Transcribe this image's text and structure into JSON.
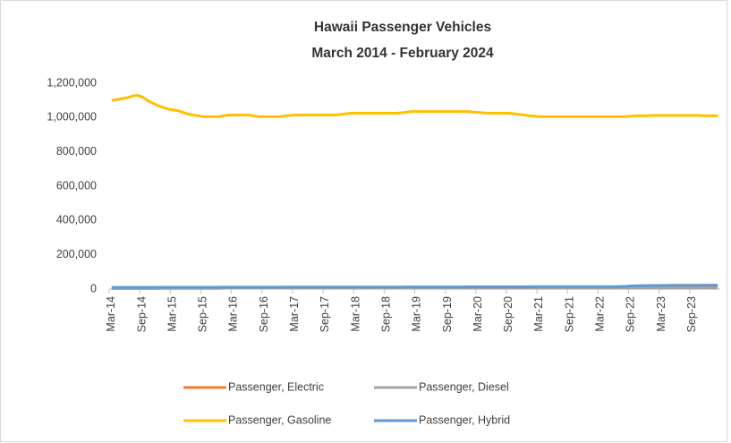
{
  "chart_data": {
    "type": "line",
    "title": "Hawaii Passenger Vehicles",
    "subtitle": "March 2014 - February 2024",
    "categories": [
      "Mar-14",
      null,
      null,
      null,
      null,
      null,
      "Sep-14",
      null,
      null,
      null,
      null,
      null,
      "Mar-15",
      null,
      null,
      null,
      null,
      null,
      "Sep-15",
      null,
      null,
      null,
      null,
      null,
      "Mar-16",
      null,
      null,
      null,
      null,
      null,
      "Sep-16",
      null,
      null,
      null,
      null,
      null,
      "Mar-17",
      null,
      null,
      null,
      null,
      null,
      "Sep-17",
      null,
      null,
      null,
      null,
      null,
      "Mar-18",
      null,
      null,
      null,
      null,
      null,
      "Sep-18",
      null,
      null,
      null,
      null,
      null,
      "Mar-19",
      null,
      null,
      null,
      null,
      null,
      "Sep-19",
      null,
      null,
      null,
      null,
      null,
      "Mar-20",
      null,
      null,
      null,
      null,
      null,
      "Sep-20",
      null,
      null,
      null,
      null,
      null,
      "Mar-21",
      null,
      null,
      null,
      null,
      null,
      "Sep-21",
      null,
      null,
      null,
      null,
      null,
      "Mar-22",
      null,
      null,
      null,
      null,
      null,
      "Sep-22",
      null,
      null,
      null,
      null,
      null,
      "Mar-23",
      null,
      null,
      null,
      null,
      null,
      "Sep-23",
      null,
      null,
      null,
      null,
      null
    ],
    "series": [
      {
        "name": "Passenger, Electric",
        "color": "#ed7d31",
        "values": [
          3000,
          3000,
          3000,
          3000,
          3000,
          3000,
          3000,
          3000,
          3000,
          3000,
          4000,
          4000,
          4000,
          4000,
          4000,
          4000,
          4000,
          4000,
          4000,
          4000,
          4000,
          4000,
          5000,
          5000,
          5000,
          5000,
          5000,
          5000,
          5000,
          5000,
          5000,
          5000,
          5000,
          5000,
          6000,
          6000,
          6000,
          6000,
          6000,
          6000,
          6000,
          6000,
          6000,
          6000,
          6000,
          6000,
          7000,
          7000,
          7000,
          7000,
          7000,
          7000,
          7000,
          7000,
          7000,
          7000,
          7000,
          7000,
          8000,
          8000,
          8000,
          8000,
          8000,
          8000,
          8000,
          8000,
          8000,
          8000,
          8000,
          8000,
          9000,
          9000,
          9000,
          9000,
          9000,
          9000,
          9000,
          9000,
          9000,
          9000,
          9000,
          9000,
          10000,
          10000,
          10000,
          10000,
          10000,
          10000,
          10000,
          10000,
          10000,
          10000,
          10000,
          10000,
          12000,
          12000,
          12000,
          12000,
          12000,
          12000,
          12000,
          12000,
          12000,
          12000,
          12000,
          12000,
          15000,
          15000,
          15000,
          15000,
          15000,
          15000,
          15000,
          15000,
          15000,
          15000,
          15000,
          15000,
          17000,
          17000
        ]
      },
      {
        "name": "Passenger, Diesel",
        "color": "#a5a5a5",
        "values": [
          5000,
          5000,
          5000,
          5000,
          5000,
          5000,
          5000,
          5000,
          5000,
          5000,
          5000,
          5000,
          5000,
          5000,
          5000,
          5000,
          5000,
          5000,
          5000,
          5000,
          5000,
          5000,
          5000,
          5000,
          5000,
          5000,
          5000,
          5000,
          5000,
          5000,
          5000,
          5000,
          5000,
          5000,
          5000,
          5000,
          5000,
          5000,
          5000,
          5000,
          5000,
          5000,
          5000,
          5000,
          5000,
          5000,
          5000,
          5000,
          5000,
          5000,
          5000,
          5000,
          5000,
          5000,
          5000,
          5000,
          5000,
          5000,
          5000,
          5000,
          5000,
          5000,
          5000,
          5000,
          5000,
          5000,
          5000,
          5000,
          5000,
          5000,
          5000,
          5000,
          5000,
          5000,
          5000,
          5000,
          5000,
          5000,
          5000,
          5000,
          5000,
          5000,
          5000,
          5000,
          5000,
          5000,
          5000,
          5000,
          5000,
          5000,
          5000,
          5000,
          5000,
          5000,
          5000,
          5000,
          5000,
          5000,
          5000,
          5000,
          5000,
          5000,
          5000,
          5000,
          5000,
          5000,
          5000,
          5000,
          5000,
          5000,
          5000,
          5000,
          5000,
          5000,
          5000,
          5000,
          5000,
          5000,
          5000,
          5000
        ]
      },
      {
        "name": "Passenger, Gasoline",
        "color": "#ffc000",
        "values": [
          1100000,
          1105000,
          1110000,
          1115000,
          1125000,
          1130000,
          1120000,
          1100000,
          1085000,
          1070000,
          1060000,
          1050000,
          1045000,
          1040000,
          1030000,
          1020000,
          1015000,
          1010000,
          1005000,
          1005000,
          1005000,
          1005000,
          1010000,
          1015000,
          1015000,
          1015000,
          1015000,
          1015000,
          1008000,
          1005000,
          1005000,
          1005000,
          1005000,
          1005000,
          1010000,
          1012000,
          1015000,
          1015000,
          1015000,
          1015000,
          1015000,
          1015000,
          1015000,
          1015000,
          1015000,
          1018000,
          1022000,
          1025000,
          1025000,
          1025000,
          1025000,
          1025000,
          1025000,
          1025000,
          1025000,
          1025000,
          1025000,
          1028000,
          1032000,
          1035000,
          1035000,
          1035000,
          1035000,
          1035000,
          1035000,
          1035000,
          1035000,
          1035000,
          1035000,
          1035000,
          1035000,
          1032000,
          1030000,
          1028000,
          1025000,
          1025000,
          1025000,
          1025000,
          1025000,
          1022000,
          1018000,
          1015000,
          1010000,
          1008000,
          1005000,
          1005000,
          1005000,
          1005000,
          1005000,
          1005000,
          1005000,
          1005000,
          1005000,
          1005000,
          1005000,
          1005000,
          1005000,
          1005000,
          1005000,
          1005000,
          1005000,
          1005000,
          1008000,
          1010000,
          1010000,
          1010000,
          1012000,
          1012000,
          1012000,
          1012000,
          1012000,
          1012000,
          1012000,
          1012000,
          1012000,
          1012000,
          1010000,
          1010000,
          1010000,
          1010000
        ]
      },
      {
        "name": "Passenger, Hybrid",
        "color": "#5b9bd5",
        "values": [
          10000,
          10000,
          10000,
          10000,
          10000,
          10000,
          10000,
          10000,
          10000,
          10000,
          10500,
          10500,
          10500,
          10500,
          10500,
          10500,
          10500,
          10500,
          10500,
          10500,
          10500,
          10500,
          11000,
          11000,
          11000,
          11000,
          11000,
          11000,
          11000,
          11000,
          11000,
          11000,
          11000,
          11000,
          11500,
          11500,
          11500,
          11500,
          11500,
          11500,
          11500,
          11500,
          11500,
          11500,
          11500,
          11500,
          12000,
          12000,
          12000,
          12000,
          12000,
          12000,
          12000,
          12000,
          12000,
          12000,
          12000,
          12000,
          12500,
          12500,
          12500,
          12500,
          12500,
          12500,
          12500,
          12500,
          12500,
          12500,
          12500,
          12500,
          13000,
          13000,
          13000,
          13000,
          13000,
          13000,
          13000,
          13000,
          13000,
          13000,
          13000,
          13000,
          13500,
          13500,
          13500,
          13500,
          13500,
          13500,
          13500,
          13500,
          13500,
          13500,
          13500,
          13500,
          14000,
          14000,
          14000,
          14000,
          14000,
          14000,
          15000,
          16000,
          18000,
          19000,
          20000,
          20500,
          21000,
          21000,
          21500,
          21500,
          22000,
          22000,
          22000,
          22500,
          22500,
          22500,
          23000,
          23000,
          23000,
          23000
        ]
      }
    ],
    "ylim": [
      0,
      1200000
    ],
    "yticks": [
      0,
      {
        "value": 200000,
        "label": "200,000"
      },
      {
        "value": 400000,
        "label": "400,000"
      },
      {
        "value": 600000,
        "label": "600,000"
      },
      {
        "value": 800000,
        "label": "800,000"
      },
      {
        "value": 1000000,
        "label": "1,000,000"
      },
      {
        "value": 1200000,
        "label": "1,200,000"
      }
    ],
    "grid": false,
    "legend": "bottom"
  }
}
